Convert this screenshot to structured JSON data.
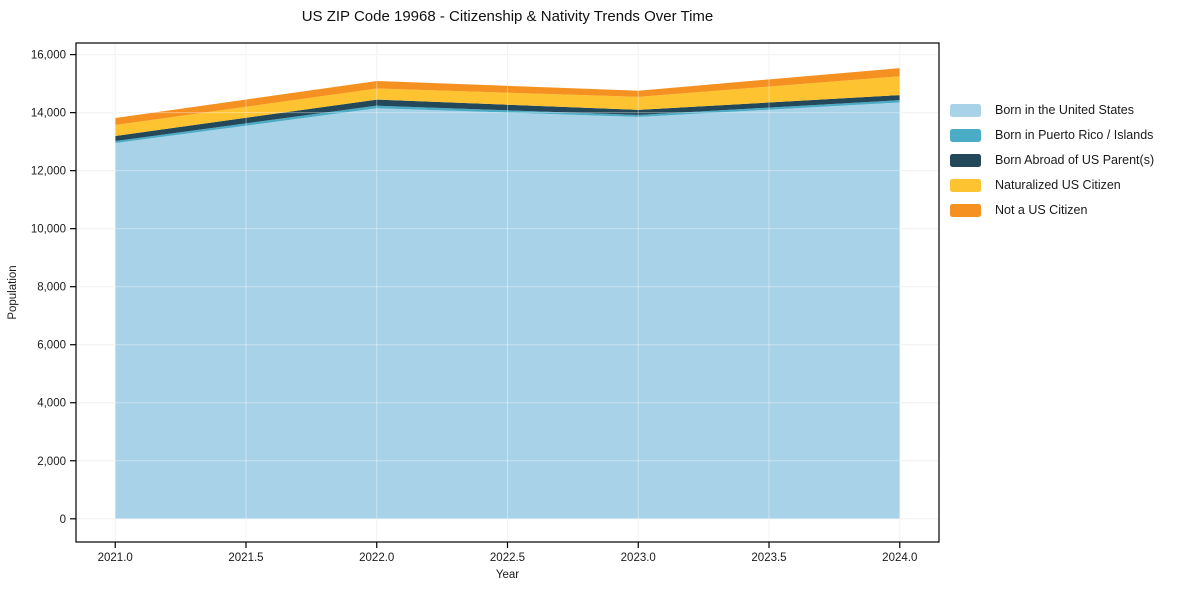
{
  "title": "US ZIP Code 19968 - Citizenship & Nativity Trends Over Time",
  "chart_data": {
    "type": "area",
    "stacked": true,
    "title": "US ZIP Code 19968 - Citizenship & Nativity Trends Over Time",
    "xlabel": "Year",
    "ylabel": "Population",
    "x": [
      2021,
      2022,
      2023,
      2024
    ],
    "series": [
      {
        "name": "Born in the United States",
        "color": "#a8d2e8",
        "values": [
          12950,
          14150,
          13850,
          14350
        ]
      },
      {
        "name": "Born in Puerto Rico / Islands",
        "color": "#4bacc6",
        "values": [
          70,
          90,
          70,
          80
        ]
      },
      {
        "name": "Born Abroad of US Parent(s)",
        "color": "#23485a",
        "values": [
          175,
          210,
          175,
          175
        ]
      },
      {
        "name": "Naturalized US Citizen",
        "color": "#fdc330",
        "values": [
          380,
          380,
          450,
          650
        ]
      },
      {
        "name": "Not a US Citizen",
        "color": "#f59120",
        "values": [
          240,
          260,
          210,
          280
        ]
      }
    ],
    "stack_totals": [
      13815,
      15090,
      14755,
      15535
    ],
    "xlim": [
      2020.85,
      2024.15
    ],
    "ylim": [
      -800,
      16400
    ],
    "xticks": [
      2021.0,
      2021.5,
      2022.0,
      2022.5,
      2023.0,
      2023.5,
      2024.0
    ],
    "xtick_labels": [
      "2021.0",
      "2021.5",
      "2022.0",
      "2022.5",
      "2023.0",
      "2023.5",
      "2024.0"
    ],
    "yticks": [
      0,
      2000,
      4000,
      6000,
      8000,
      10000,
      12000,
      14000,
      16000
    ],
    "ytick_labels": [
      "0",
      "2,000",
      "4,000",
      "6,000",
      "8,000",
      "10,000",
      "12,000",
      "14,000",
      "16,000"
    ],
    "grid": true,
    "legend_position": "right-outside"
  },
  "style": {
    "spine_color": "#000000",
    "grid_color": "#ececec",
    "grid_overlay_color": "rgba(255,255,255,0.38)",
    "tick_label_color": "#1a1a1a",
    "axis_label_color": "#1a1a1a",
    "plot_bg": "#ffffff"
  }
}
